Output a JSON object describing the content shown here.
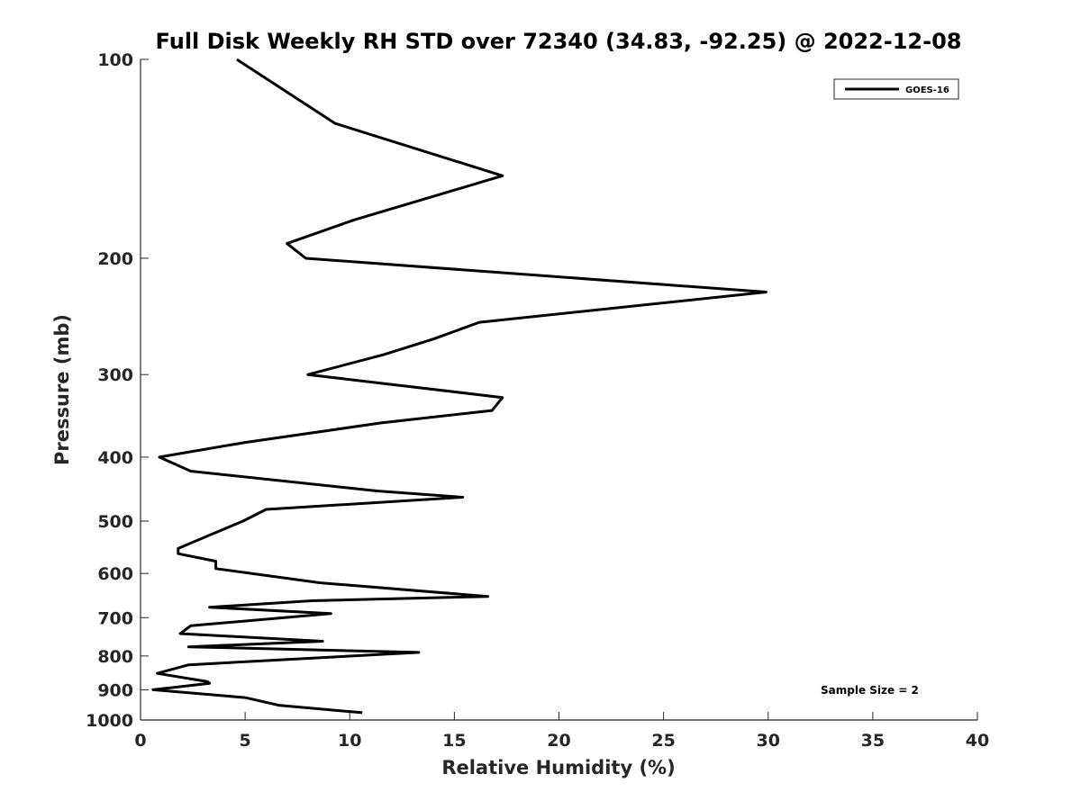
{
  "chart_data": {
    "type": "line",
    "title": "Full Disk Weekly RH STD over 72340 (34.83, -92.25) @ 2022-12-08",
    "xlabel": "Relative Humidity (%)",
    "ylabel": "Pressure (mb)",
    "xlim": [
      0,
      40
    ],
    "ylim": [
      100,
      1000
    ],
    "y_scale": "log",
    "y_reversed": true,
    "x_ticks": [
      0,
      5,
      10,
      15,
      20,
      25,
      30,
      35,
      40
    ],
    "y_ticks": [
      100,
      200,
      300,
      400,
      500,
      600,
      700,
      800,
      900,
      1000
    ],
    "grid": false,
    "legend_position": "top-right",
    "annotation": "Sample Size = 2",
    "series": [
      {
        "name": "GOES-16",
        "color": "#000000",
        "points": [
          [
            4.6,
            100
          ],
          [
            9.3,
            125
          ],
          [
            17.3,
            150
          ],
          [
            10.2,
            175
          ],
          [
            7.0,
            190
          ],
          [
            7.9,
            200
          ],
          [
            29.9,
            225
          ],
          [
            16.2,
            250
          ],
          [
            14.0,
            265
          ],
          [
            11.6,
            280
          ],
          [
            8.0,
            300
          ],
          [
            17.3,
            325
          ],
          [
            16.8,
            340
          ],
          [
            11.5,
            355
          ],
          [
            5.0,
            380
          ],
          [
            0.9,
            400
          ],
          [
            2.4,
            420
          ],
          [
            11.3,
            450
          ],
          [
            15.4,
            460
          ],
          [
            6.0,
            480
          ],
          [
            4.9,
            500
          ],
          [
            3.3,
            525
          ],
          [
            1.8,
            550
          ],
          [
            1.8,
            560
          ],
          [
            3.6,
            575
          ],
          [
            3.6,
            590
          ],
          [
            8.6,
            620
          ],
          [
            16.6,
            650
          ],
          [
            8.2,
            660
          ],
          [
            3.3,
            675
          ],
          [
            9.1,
            690
          ],
          [
            2.4,
            720
          ],
          [
            1.9,
            740
          ],
          [
            8.7,
            760
          ],
          [
            2.3,
            775
          ],
          [
            13.3,
            790
          ],
          [
            2.3,
            825
          ],
          [
            0.8,
            850
          ],
          [
            3.2,
            875
          ],
          [
            3.3,
            880
          ],
          [
            0.6,
            900
          ],
          [
            5.0,
            925
          ],
          [
            6.6,
            950
          ],
          [
            10.6,
            975
          ]
        ]
      }
    ]
  }
}
